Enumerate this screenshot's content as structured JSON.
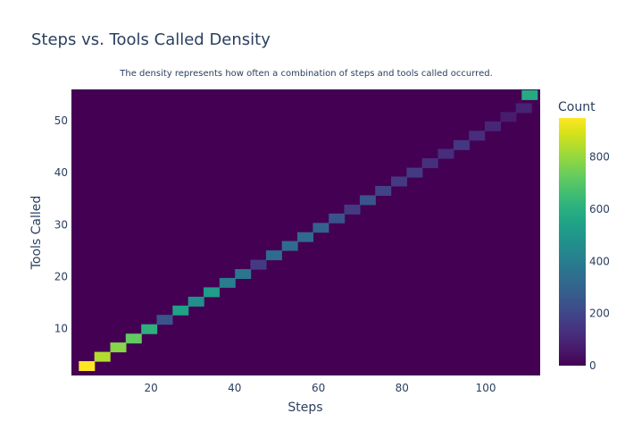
{
  "chart_data": {
    "type": "heatmap",
    "title": "Steps vs. Tools Called Density",
    "subtitle": "The density represents how often a combination of steps and tools called occurred.",
    "xlabel": "Steps",
    "ylabel": "Tools Called",
    "xlim": [
      1,
      113
    ],
    "ylim": [
      1,
      56
    ],
    "x_ticks": [
      20,
      40,
      60,
      80,
      100
    ],
    "y_ticks": [
      10,
      20,
      30,
      40,
      50
    ],
    "background_count": 0,
    "colorbar": {
      "title": "Count",
      "range": [
        0,
        950
      ],
      "ticks": [
        0,
        200,
        400,
        600,
        800
      ],
      "colorscale": "Viridis"
    },
    "cells": [
      {
        "steps": 4.7,
        "tools": 2.8,
        "count": 950
      },
      {
        "steps": 8.4,
        "tools": 4.6,
        "count": 840
      },
      {
        "steps": 12.2,
        "tools": 6.4,
        "count": 780
      },
      {
        "steps": 15.9,
        "tools": 8.1,
        "count": 720
      },
      {
        "steps": 19.6,
        "tools": 9.9,
        "count": 610
      },
      {
        "steps": 23.3,
        "tools": 11.7,
        "count": 250
      },
      {
        "steps": 27.1,
        "tools": 13.5,
        "count": 540
      },
      {
        "steps": 30.8,
        "tools": 15.2,
        "count": 470
      },
      {
        "steps": 34.5,
        "tools": 17.0,
        "count": 520
      },
      {
        "steps": 38.3,
        "tools": 18.8,
        "count": 400
      },
      {
        "steps": 42.0,
        "tools": 20.5,
        "count": 370
      },
      {
        "steps": 45.7,
        "tools": 22.3,
        "count": 160
      },
      {
        "steps": 49.4,
        "tools": 24.1,
        "count": 330
      },
      {
        "steps": 53.2,
        "tools": 25.9,
        "count": 330
      },
      {
        "steps": 56.9,
        "tools": 27.6,
        "count": 330
      },
      {
        "steps": 60.6,
        "tools": 29.4,
        "count": 290
      },
      {
        "steps": 64.4,
        "tools": 31.2,
        "count": 240
      },
      {
        "steps": 68.1,
        "tools": 32.9,
        "count": 160
      },
      {
        "steps": 71.8,
        "tools": 34.7,
        "count": 250
      },
      {
        "steps": 75.5,
        "tools": 36.5,
        "count": 190
      },
      {
        "steps": 79.3,
        "tools": 38.3,
        "count": 160
      },
      {
        "steps": 83.0,
        "tools": 40.0,
        "count": 160
      },
      {
        "steps": 86.7,
        "tools": 41.8,
        "count": 130
      },
      {
        "steps": 90.5,
        "tools": 43.6,
        "count": 120
      },
      {
        "steps": 94.2,
        "tools": 45.3,
        "count": 150
      },
      {
        "steps": 97.9,
        "tools": 47.1,
        "count": 120
      },
      {
        "steps": 101.7,
        "tools": 48.9,
        "count": 100
      },
      {
        "steps": 105.4,
        "tools": 50.7,
        "count": 70
      },
      {
        "steps": 109.1,
        "tools": 52.4,
        "count": 90
      },
      {
        "steps": 110.5,
        "tools": 54.9,
        "count": 580
      }
    ]
  }
}
